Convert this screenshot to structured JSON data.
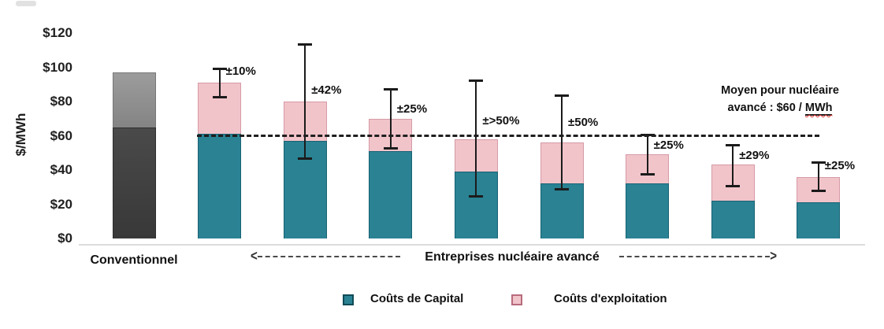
{
  "chart_data": {
    "type": "bar",
    "stacked": true,
    "unit": "$/MWh",
    "ylabel": "$/MWh",
    "ylim": [
      0,
      120
    ],
    "grid": false,
    "y_ticks": [
      {
        "value": 120,
        "label": "$120"
      },
      {
        "value": 100,
        "label": "$100"
      },
      {
        "value": 80,
        "label": "$80"
      },
      {
        "value": 60,
        "label": "$60"
      },
      {
        "value": 40,
        "label": "$40"
      },
      {
        "value": 20,
        "label": "$20"
      },
      {
        "value": 0,
        "label": "$0"
      }
    ],
    "series_names": [
      "Coûts de Capital",
      "Coûts d'exploitation"
    ],
    "conventional_bar": {
      "category": "Conventionnel",
      "dark_segment": 65,
      "light_segment": 32,
      "total": 97
    },
    "advanced_bars": [
      {
        "capital": 61,
        "exploitation": 30,
        "total": 91,
        "error_low": 82,
        "error_high": 100,
        "error_label": "±10%",
        "label_center_value": 97
      },
      {
        "capital": 57,
        "exploitation": 23,
        "total": 80,
        "error_low": 46,
        "error_high": 114,
        "error_label": "±42%",
        "label_center_value": 86
      },
      {
        "capital": 51,
        "exploitation": 19,
        "total": 70,
        "error_low": 52,
        "error_high": 88,
        "error_label": "±25%",
        "label_center_value": 75
      },
      {
        "capital": 39,
        "exploitation": 19,
        "total": 58,
        "error_low": 24,
        "error_high": 93,
        "error_label": "±>50%",
        "label_center_value": 68
      },
      {
        "capital": 32,
        "exploitation": 24,
        "total": 56,
        "error_low": 28,
        "error_high": 84,
        "error_label": "±50%",
        "label_center_value": 67
      },
      {
        "capital": 32,
        "exploitation": 17,
        "total": 49,
        "error_low": 37,
        "error_high": 61,
        "error_label": "±25%",
        "label_center_value": 54
      },
      {
        "capital": 22,
        "exploitation": 21,
        "total": 43,
        "error_low": 30,
        "error_high": 55,
        "error_label": "±29%",
        "label_center_value": 48
      },
      {
        "capital": 21,
        "exploitation": 15,
        "total": 36,
        "error_low": 27,
        "error_high": 45,
        "error_label": "±25%",
        "label_center_value": 42
      }
    ],
    "reference_line": {
      "value": 60,
      "label": "Moyen pour nucléaire avancé : $60 / MWh"
    }
  },
  "x_axis": {
    "conventional_label": "Conventionnel",
    "advanced_label": "Entreprises nucléaire avancé"
  },
  "annotation": {
    "line1": "Moyen pour nucléaire",
    "line2_prefix": "avancé : $60 / ",
    "line2_underlined": "MWh"
  },
  "legend": {
    "items": [
      {
        "label": "Coûts de Capital",
        "color": "#2a8293"
      },
      {
        "label": "Coûts d'exploitation",
        "color": "#f1c4ca"
      }
    ]
  },
  "colors": {
    "capital": "#2a8293",
    "exploitation": "#f1c4ca",
    "conventional_dark": "#404040",
    "conventional_light": "#8d8d8d",
    "error_bar": "#1b1b1b",
    "reference_line": "#1f1f1f",
    "axis_line": "#dcdcdc",
    "squiggle": "#e03131"
  }
}
